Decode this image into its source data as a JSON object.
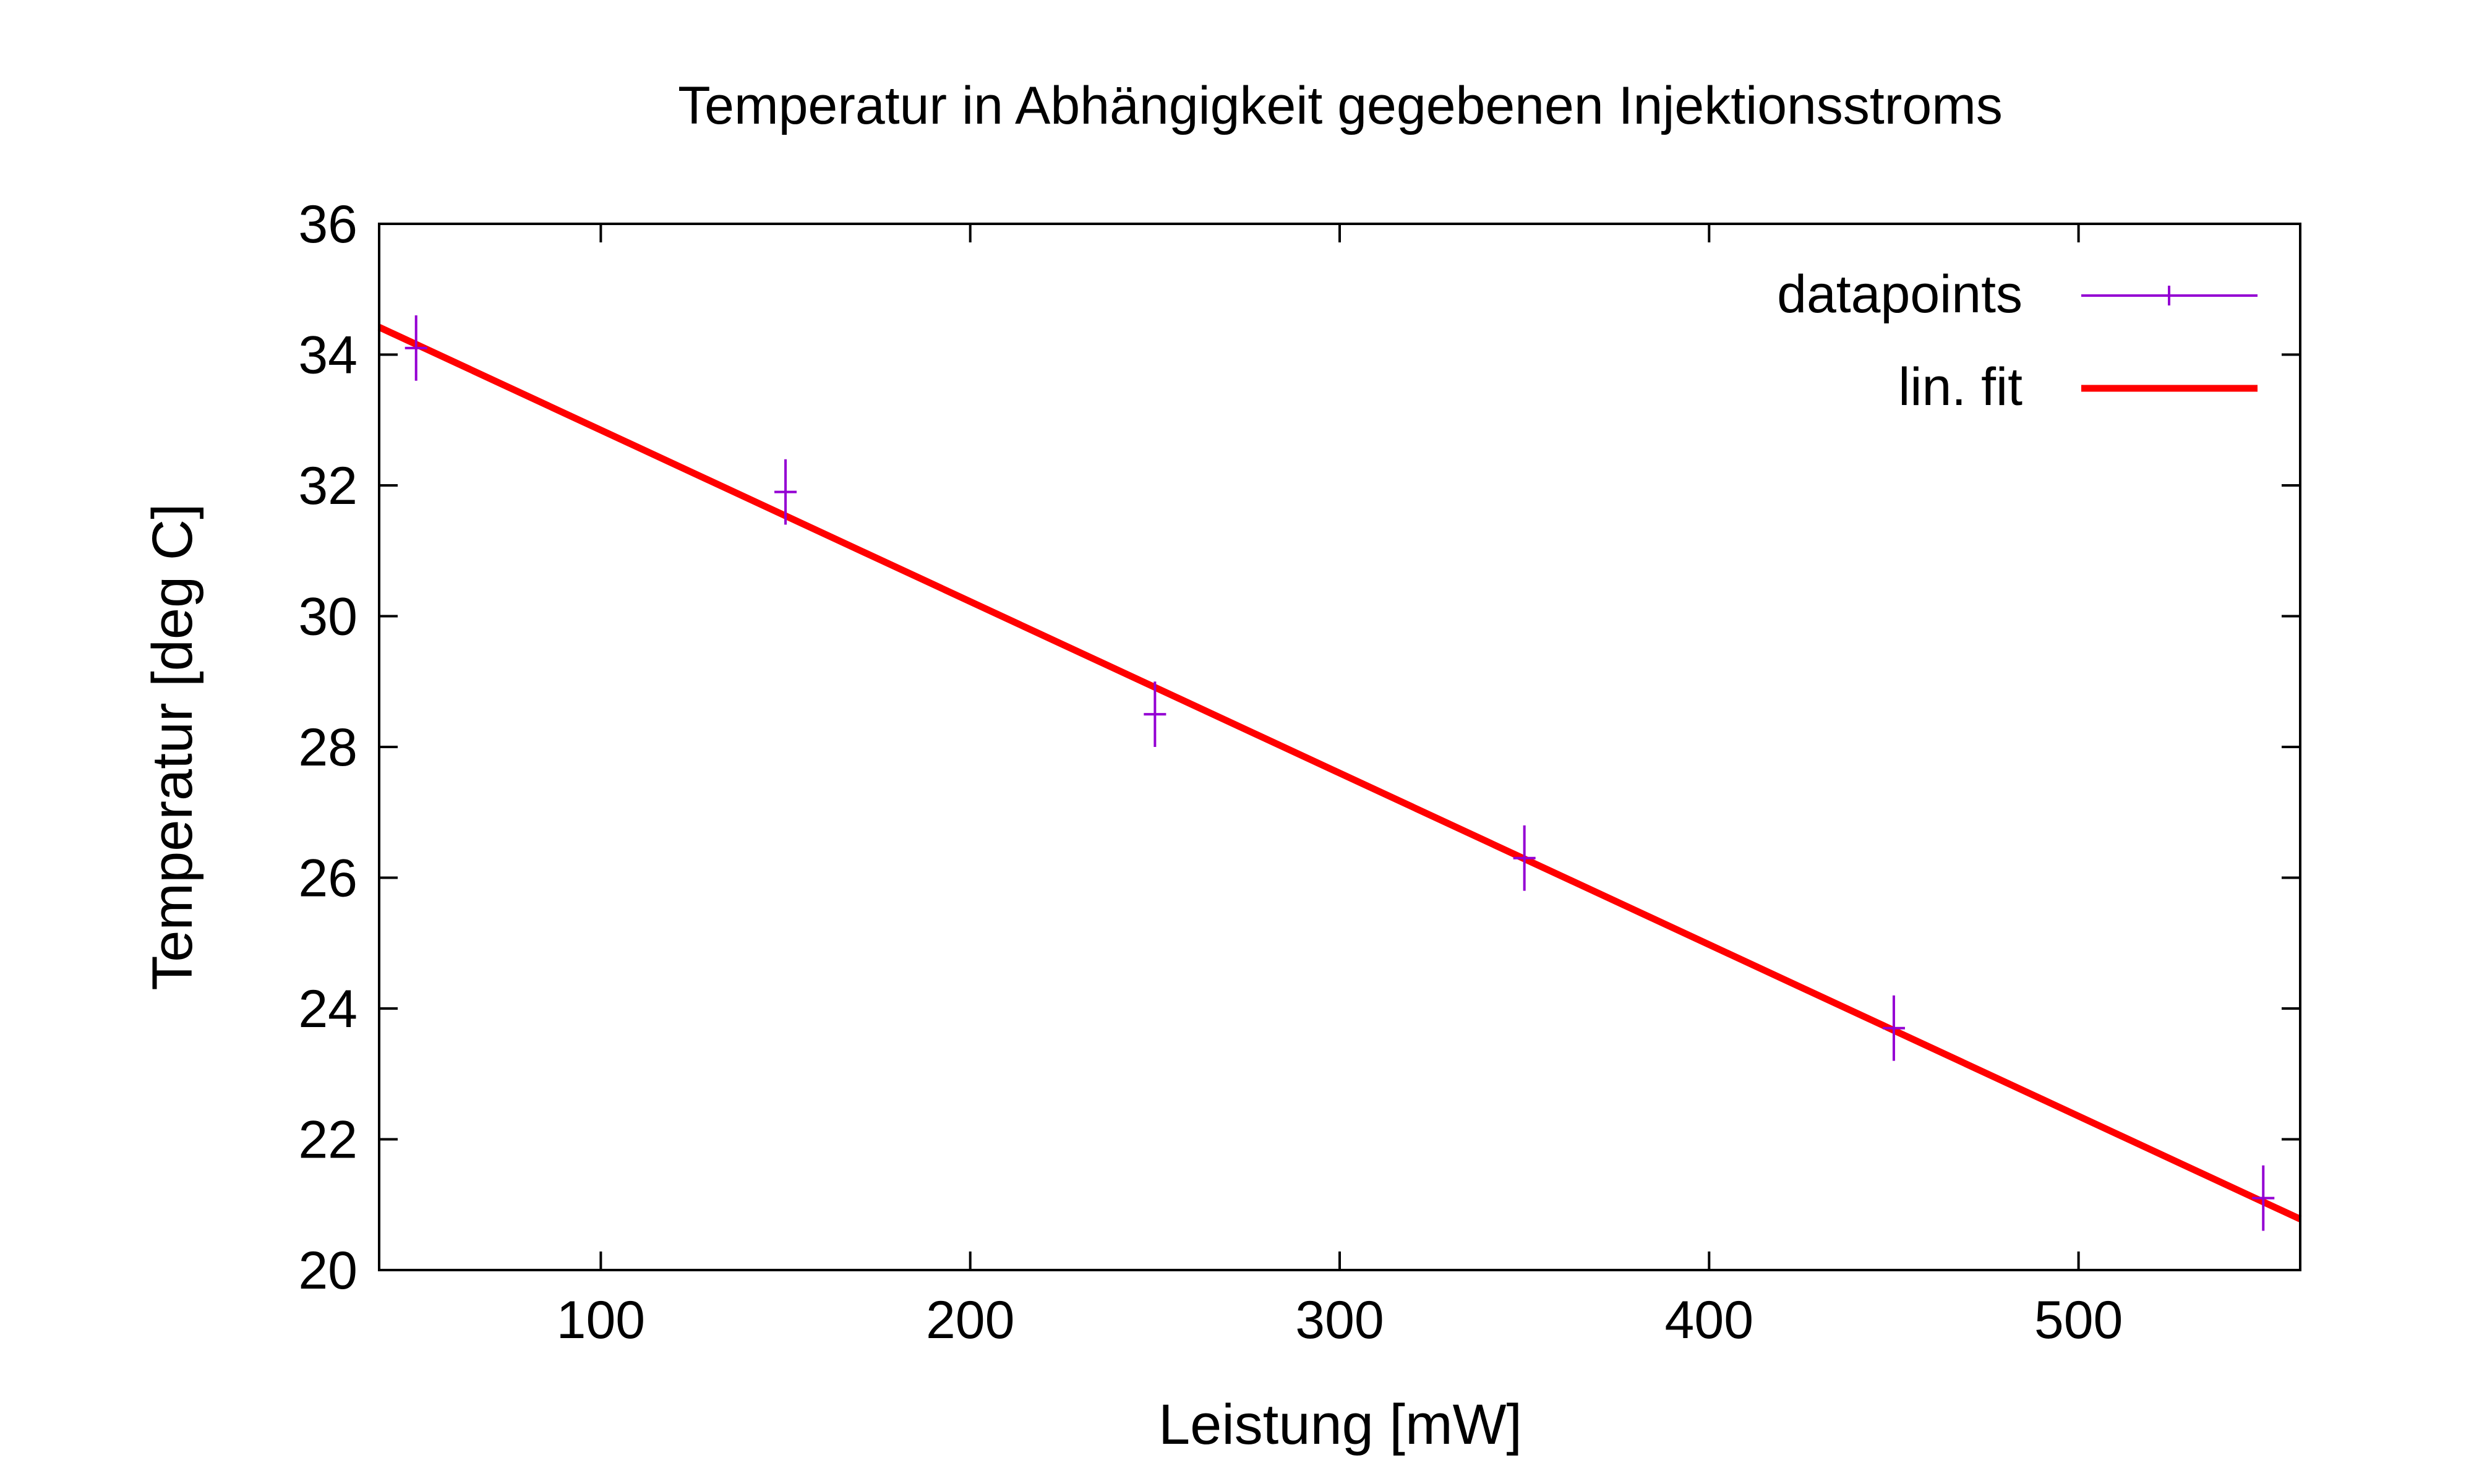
{
  "chart_data": {
    "type": "scatter",
    "title": "Temperatur in Abhängigkeit gegebenen Injektionsstroms",
    "xlabel": "Leistung [mW]",
    "ylabel": "Temperatur [deg C]",
    "xlim": [
      40,
      560
    ],
    "ylim": [
      20,
      36
    ],
    "xticks": [
      100,
      200,
      300,
      400,
      500
    ],
    "yticks": [
      20,
      22,
      24,
      26,
      28,
      30,
      32,
      34,
      36
    ],
    "grid": false,
    "legend_position": "top-right",
    "series": [
      {
        "name": "datapoints",
        "kind": "points-with-errorbars",
        "color": "#9400d3",
        "x": [
          50,
          150,
          250,
          350,
          450,
          550
        ],
        "y": [
          34.1,
          31.9,
          28.5,
          26.3,
          23.7,
          21.1
        ],
        "yerr": [
          0.5,
          0.5,
          0.5,
          0.5,
          0.5,
          0.5
        ]
      },
      {
        "name": "lin. fit",
        "kind": "line",
        "color": "#ff0000",
        "x": [
          40,
          560
        ],
        "y": [
          34.42,
          20.78
        ]
      }
    ]
  }
}
